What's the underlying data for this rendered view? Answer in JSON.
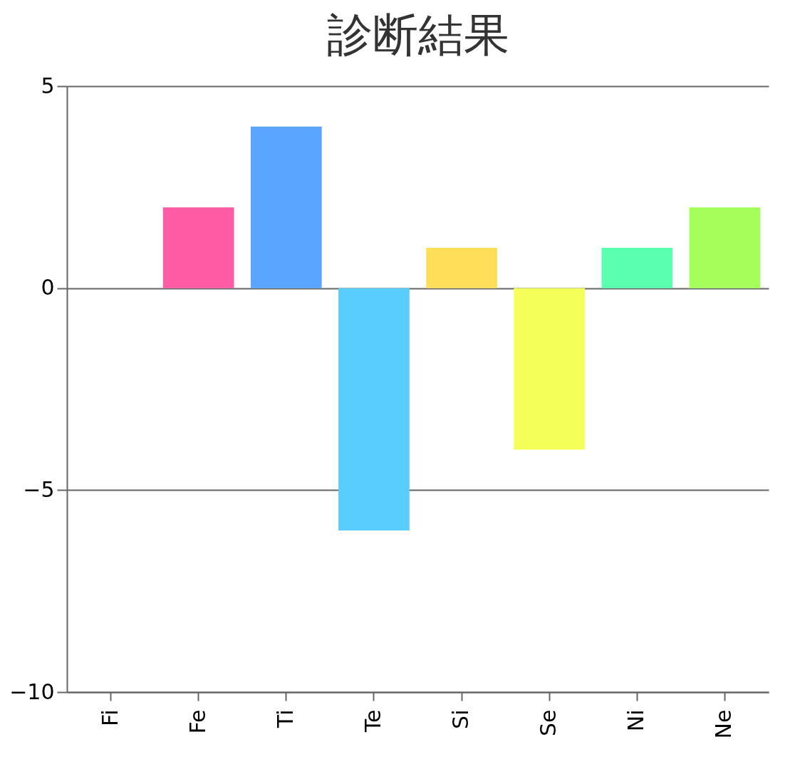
{
  "chart_data": {
    "type": "bar",
    "title": "診断結果",
    "categories": [
      "Fi",
      "Fe",
      "Ti",
      "Te",
      "Si",
      "Se",
      "Ni",
      "Ne"
    ],
    "values": [
      0,
      2,
      4,
      -6,
      1,
      -4,
      1,
      2
    ],
    "colors": [
      "#ff5a5a",
      "#ff5ca5",
      "#5aa5ff",
      "#5acdff",
      "#ffdf5a",
      "#f5ff5a",
      "#5affb0",
      "#a5ff5a"
    ],
    "ylim": [
      -10,
      5
    ],
    "yticks": [
      -10,
      -5,
      0,
      5
    ],
    "grid": "y",
    "legend": false
  }
}
